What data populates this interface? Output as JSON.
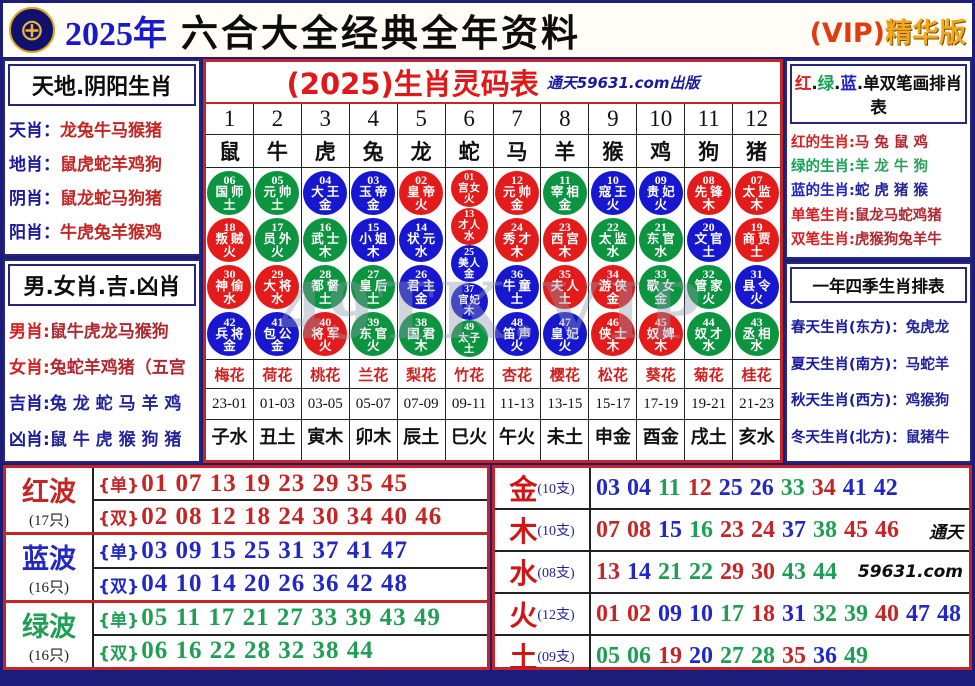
{
  "header": {
    "year": "2025年",
    "title": "六合大全经典全年资料",
    "vip": "(VIP)",
    "edition": "精华版"
  },
  "left_top": {
    "title": "天地.阴阳生肖",
    "rows": [
      {
        "label": "天肖：",
        "value": "龙兔牛马猴猪"
      },
      {
        "label": "地肖：",
        "value": "鼠虎蛇羊鸡狗"
      },
      {
        "label": "阴肖：",
        "value": "鼠龙蛇马狗猪"
      },
      {
        "label": "阳肖：",
        "value": "牛虎兔羊猴鸡"
      }
    ]
  },
  "left_bottom": {
    "title": "男.女肖.吉.凶肖",
    "rows": [
      {
        "label": "男肖:",
        "value": "鼠牛虎龙马猴狗",
        "color": "red"
      },
      {
        "label": "女肖:",
        "value": "兔蛇羊鸡猪（五宫",
        "color": "red"
      },
      {
        "label": "吉肖:",
        "value": "兔 龙 蛇 马 羊 鸡",
        "color": "blue"
      },
      {
        "label": "凶肖:",
        "value": "鼠 牛 虎 猴 狗 猪",
        "color": "blue"
      }
    ]
  },
  "center": {
    "title": "(2025)生肖灵码表",
    "publisher": "通天59631.com出版",
    "watermark": "49TK.VIP",
    "columns": [
      {
        "num": "1",
        "zodiac": "鼠",
        "flower": "梅花",
        "time": "23-01",
        "branch": "子水",
        "balls": [
          {
            "n": "06",
            "t": "国师",
            "e": "土",
            "c": "g"
          },
          {
            "n": "18",
            "t": "叛贼",
            "e": "火",
            "c": "r"
          },
          {
            "n": "30",
            "t": "神偷",
            "e": "水",
            "c": "r"
          },
          {
            "n": "42",
            "t": "兵将",
            "e": "金",
            "c": "b"
          }
        ]
      },
      {
        "num": "2",
        "zodiac": "牛",
        "flower": "荷花",
        "time": "01-03",
        "branch": "丑土",
        "balls": [
          {
            "n": "05",
            "t": "元帅",
            "e": "土",
            "c": "g"
          },
          {
            "n": "17",
            "t": "员外",
            "e": "火",
            "c": "g"
          },
          {
            "n": "29",
            "t": "大将",
            "e": "水",
            "c": "r"
          },
          {
            "n": "41",
            "t": "包公",
            "e": "金",
            "c": "b"
          }
        ]
      },
      {
        "num": "3",
        "zodiac": "虎",
        "flower": "桃花",
        "time": "03-05",
        "branch": "寅木",
        "balls": [
          {
            "n": "04",
            "t": "大王",
            "e": "金",
            "c": "b"
          },
          {
            "n": "16",
            "t": "武士",
            "e": "木",
            "c": "g"
          },
          {
            "n": "28",
            "t": "都督",
            "e": "土",
            "c": "g"
          },
          {
            "n": "40",
            "t": "将军",
            "e": "火",
            "c": "r"
          }
        ]
      },
      {
        "num": "4",
        "zodiac": "兔",
        "flower": "兰花",
        "time": "05-07",
        "branch": "卯木",
        "balls": [
          {
            "n": "03",
            "t": "玉帝",
            "e": "金",
            "c": "b"
          },
          {
            "n": "15",
            "t": "小姐",
            "e": "木",
            "c": "b"
          },
          {
            "n": "27",
            "t": "皇后",
            "e": "土",
            "c": "g"
          },
          {
            "n": "39",
            "t": "东官",
            "e": "火",
            "c": "g"
          }
        ]
      },
      {
        "num": "5",
        "zodiac": "龙",
        "flower": "梨花",
        "time": "07-09",
        "branch": "辰土",
        "balls": [
          {
            "n": "02",
            "t": "皇帝",
            "e": "火",
            "c": "r"
          },
          {
            "n": "14",
            "t": "状元",
            "e": "水",
            "c": "b"
          },
          {
            "n": "26",
            "t": "君主",
            "e": "金",
            "c": "b"
          },
          {
            "n": "38",
            "t": "国君",
            "e": "木",
            "c": "g"
          }
        ]
      },
      {
        "num": "6",
        "zodiac": "蛇",
        "flower": "竹花",
        "time": "09-11",
        "branch": "巳火",
        "balls": [
          {
            "n": "01",
            "t": "宫女",
            "e": "火",
            "c": "r"
          },
          {
            "n": "13",
            "t": "才人",
            "e": "水",
            "c": "r"
          },
          {
            "n": "25",
            "t": "美人",
            "e": "金",
            "c": "b"
          },
          {
            "n": "37",
            "t": "官妃",
            "e": "木",
            "c": "b"
          },
          {
            "n": "49",
            "t": "太子",
            "e": "土",
            "c": "g"
          }
        ]
      },
      {
        "num": "7",
        "zodiac": "马",
        "flower": "杏花",
        "time": "11-13",
        "branch": "午火",
        "balls": [
          {
            "n": "12",
            "t": "元帅",
            "e": "金",
            "c": "r"
          },
          {
            "n": "24",
            "t": "秀才",
            "e": "木",
            "c": "r"
          },
          {
            "n": "36",
            "t": "牛童",
            "e": "土",
            "c": "b"
          },
          {
            "n": "48",
            "t": "笛声",
            "e": "火",
            "c": "b"
          }
        ]
      },
      {
        "num": "8",
        "zodiac": "羊",
        "flower": "樱花",
        "time": "13-15",
        "branch": "未土",
        "balls": [
          {
            "n": "11",
            "t": "宰相",
            "e": "金",
            "c": "g"
          },
          {
            "n": "23",
            "t": "西宫",
            "e": "木",
            "c": "r"
          },
          {
            "n": "35",
            "t": "夫人",
            "e": "土",
            "c": "r"
          },
          {
            "n": "47",
            "t": "皇妃",
            "e": "火",
            "c": "b"
          }
        ]
      },
      {
        "num": "9",
        "zodiac": "猴",
        "flower": "松花",
        "time": "15-17",
        "branch": "申金",
        "balls": [
          {
            "n": "10",
            "t": "寇王",
            "e": "火",
            "c": "b"
          },
          {
            "n": "22",
            "t": "太监",
            "e": "水",
            "c": "g"
          },
          {
            "n": "34",
            "t": "游侠",
            "e": "金",
            "c": "r"
          },
          {
            "n": "46",
            "t": "侠士",
            "e": "木",
            "c": "r"
          }
        ]
      },
      {
        "num": "10",
        "zodiac": "鸡",
        "flower": "葵花",
        "time": "17-19",
        "branch": "酉金",
        "balls": [
          {
            "n": "09",
            "t": "贵妃",
            "e": "火",
            "c": "b"
          },
          {
            "n": "21",
            "t": "东官",
            "e": "水",
            "c": "g"
          },
          {
            "n": "33",
            "t": "歌女",
            "e": "金",
            "c": "g"
          },
          {
            "n": "45",
            "t": "奴婢",
            "e": "木",
            "c": "r"
          }
        ]
      },
      {
        "num": "11",
        "zodiac": "狗",
        "flower": "菊花",
        "time": "19-21",
        "branch": "戌土",
        "balls": [
          {
            "n": "08",
            "t": "先锋",
            "e": "木",
            "c": "r"
          },
          {
            "n": "20",
            "t": "文官",
            "e": "土",
            "c": "b"
          },
          {
            "n": "32",
            "t": "管家",
            "e": "火",
            "c": "g"
          },
          {
            "n": "44",
            "t": "奴才",
            "e": "水",
            "c": "g"
          }
        ]
      },
      {
        "num": "12",
        "zodiac": "猪",
        "flower": "桂花",
        "time": "21-23",
        "branch": "亥水",
        "balls": [
          {
            "n": "07",
            "t": "太监",
            "e": "木",
            "c": "r"
          },
          {
            "n": "19",
            "t": "商贾",
            "e": "土",
            "c": "r"
          },
          {
            "n": "31",
            "t": "县令",
            "e": "火",
            "c": "b"
          },
          {
            "n": "43",
            "t": "丞相",
            "e": "水",
            "c": "g"
          }
        ]
      }
    ]
  },
  "right_top": {
    "title_segments": [
      {
        "text": "红",
        "color": "red"
      },
      {
        "text": ".",
        "color": "black"
      },
      {
        "text": "绿",
        "color": "green"
      },
      {
        "text": ".",
        "color": "black"
      },
      {
        "text": "蓝",
        "color": "blue"
      },
      {
        "text": ".",
        "color": "black"
      },
      {
        "text": "单双笔画排肖表",
        "color": "black"
      }
    ],
    "rows": [
      {
        "label": "红的生肖:",
        "value": "马 兔 鼠 鸡",
        "color": "red"
      },
      {
        "label": "绿的生肖:",
        "value": "羊 龙 牛 狗",
        "color": "green"
      },
      {
        "label": "蓝的生肖:",
        "value": "蛇 虎 猪 猴",
        "color": "blue"
      },
      {
        "label": "单笔生肖:",
        "value": "鼠龙马蛇鸡猪",
        "color": "red"
      },
      {
        "label": "双笔生肖:",
        "value": "虎猴狗兔羊牛",
        "color": "red"
      }
    ]
  },
  "right_bottom": {
    "title": "一年四季生肖排表",
    "rows": [
      {
        "label": "春天生肖(东方)：",
        "value": "兔虎龙"
      },
      {
        "label": "夏天生肖(南方)：",
        "value": "马蛇羊"
      },
      {
        "label": "秋天生肖(西方)：",
        "value": "鸡猴狗"
      },
      {
        "label": "冬天生肖(北方)：",
        "value": "鼠猪牛"
      }
    ]
  },
  "waves": [
    {
      "name": "红波",
      "count": "(17只)",
      "color": "red",
      "rows": [
        {
          "brace": "{单}",
          "nums": "01 07 13 19 23 29 35 45"
        },
        {
          "brace": "{双}",
          "nums": "02 08 12 18 24 30 34 40 46"
        }
      ]
    },
    {
      "name": "蓝波",
      "count": "(16只)",
      "color": "blue",
      "rows": [
        {
          "brace": "{单}",
          "nums": "03 09 15 25 31 37 41 47"
        },
        {
          "brace": "{双}",
          "nums": "04 10 14 20 26 36 42 48"
        }
      ]
    },
    {
      "name": "绿波",
      "count": "(16只)",
      "color": "green",
      "rows": [
        {
          "brace": "{单}",
          "nums": "05 11 17 21 27 33 39 43 49"
        },
        {
          "brace": "{双}",
          "nums": "06 16 22 28 32 38 44"
        }
      ]
    }
  ],
  "elements": [
    {
      "name": "金",
      "count": "(10支)",
      "suffix": "",
      "numbers": [
        {
          "n": "03",
          "c": "b"
        },
        {
          "n": "04",
          "c": "b"
        },
        {
          "n": "11",
          "c": "g"
        },
        {
          "n": "12",
          "c": "r"
        },
        {
          "n": "25",
          "c": "b"
        },
        {
          "n": "26",
          "c": "b"
        },
        {
          "n": "33",
          "c": "g"
        },
        {
          "n": "34",
          "c": "r"
        },
        {
          "n": "41",
          "c": "b"
        },
        {
          "n": "42",
          "c": "b"
        }
      ]
    },
    {
      "name": "木",
      "count": "(10支)",
      "suffix": "通天",
      "numbers": [
        {
          "n": "07",
          "c": "r"
        },
        {
          "n": "08",
          "c": "r"
        },
        {
          "n": "15",
          "c": "b"
        },
        {
          "n": "16",
          "c": "g"
        },
        {
          "n": "23",
          "c": "r"
        },
        {
          "n": "24",
          "c": "r"
        },
        {
          "n": "37",
          "c": "b"
        },
        {
          "n": "38",
          "c": "g"
        },
        {
          "n": "45",
          "c": "r"
        },
        {
          "n": "46",
          "c": "r"
        }
      ]
    },
    {
      "name": "水",
      "count": "(08支)",
      "suffix": "59631.com",
      "numbers": [
        {
          "n": "13",
          "c": "r"
        },
        {
          "n": "14",
          "c": "b"
        },
        {
          "n": "21",
          "c": "g"
        },
        {
          "n": "22",
          "c": "g"
        },
        {
          "n": "29",
          "c": "r"
        },
        {
          "n": "30",
          "c": "r"
        },
        {
          "n": "43",
          "c": "g"
        },
        {
          "n": "44",
          "c": "g"
        }
      ]
    },
    {
      "name": "火",
      "count": "(12支)",
      "suffix": "",
      "numbers": [
        {
          "n": "01",
          "c": "r"
        },
        {
          "n": "02",
          "c": "r"
        },
        {
          "n": "09",
          "c": "b"
        },
        {
          "n": "10",
          "c": "b"
        },
        {
          "n": "17",
          "c": "g"
        },
        {
          "n": "18",
          "c": "r"
        },
        {
          "n": "31",
          "c": "b"
        },
        {
          "n": "32",
          "c": "g"
        },
        {
          "n": "39",
          "c": "g"
        },
        {
          "n": "40",
          "c": "r"
        },
        {
          "n": "47",
          "c": "b"
        },
        {
          "n": "48",
          "c": "b"
        }
      ]
    },
    {
      "name": "土",
      "count": "(09支)",
      "suffix": "",
      "numbers": [
        {
          "n": "05",
          "c": "g"
        },
        {
          "n": "06",
          "c": "g"
        },
        {
          "n": "19",
          "c": "r"
        },
        {
          "n": "20",
          "c": "b"
        },
        {
          "n": "27",
          "c": "g"
        },
        {
          "n": "28",
          "c": "g"
        },
        {
          "n": "35",
          "c": "r"
        },
        {
          "n": "36",
          "c": "b"
        },
        {
          "n": "49",
          "c": "g"
        }
      ]
    }
  ]
}
